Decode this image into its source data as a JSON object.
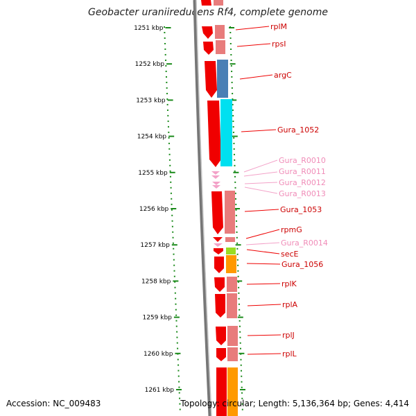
{
  "title": "Geobacter uraniireducens Rf4, complete genome",
  "accession": "Accession: NC_009483",
  "topology": "Topology: circular; Length: 5,136,364 bp; Genes: 4,414",
  "ticks": [
    "1251 kbp",
    "1252 kbp",
    "1253 kbp",
    "1254 kbp",
    "1255 kbp",
    "1256 kbp",
    "1257 kbp",
    "1258 kbp",
    "1259 kbp",
    "1260 kbp",
    "1261 kbp"
  ],
  "genes": [
    {
      "label": "rplM",
      "color": "#e8453c"
    },
    {
      "label": "rpsI",
      "color": "#e8453c"
    },
    {
      "label": "argC",
      "color": "#e8453c"
    },
    {
      "label": "Gura_1052",
      "color": "#e8453c"
    },
    {
      "label": "Gura_R0010",
      "color": "#f08cb8"
    },
    {
      "label": "Gura_R0011",
      "color": "#f08cb8"
    },
    {
      "label": "Gura_R0012",
      "color": "#f08cb8"
    },
    {
      "label": "Gura_R0013",
      "color": "#f08cb8"
    },
    {
      "label": "Gura_1053",
      "color": "#e8453c"
    },
    {
      "label": "rpmG",
      "color": "#e8453c"
    },
    {
      "label": "Gura_R0014",
      "color": "#f08cb8"
    },
    {
      "label": "secE",
      "color": "#e8453c"
    },
    {
      "label": "Gura_1056",
      "color": "#e8453c"
    },
    {
      "label": "rplK",
      "color": "#e8453c"
    },
    {
      "label": "rplA",
      "color": "#e8453c"
    },
    {
      "label": "rplJ",
      "color": "#e8453c"
    },
    {
      "label": "rplL",
      "color": "#e8453c"
    }
  ],
  "colors": {
    "tick": "#1a8a1a",
    "arrow": "#f00000",
    "salmon": "#e87c7c",
    "blue": "#4a7fb5",
    "cyan": "#00e0f0",
    "green": "#99dd22",
    "orange": "#ff9900",
    "pink": "#f3a2c8"
  }
}
